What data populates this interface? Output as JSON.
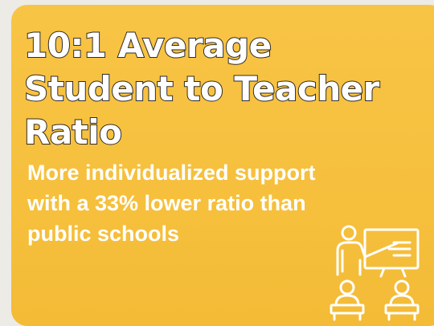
{
  "headline": {
    "line1": "10:1 Average",
    "line2": "Student to Teacher",
    "line3": "Ratio"
  },
  "subtext": {
    "line1": "More individualized support",
    "line2": "with a 33% lower ratio than",
    "line3": "public schools"
  },
  "icon": "teacher-classroom-icon",
  "colors": {
    "card_background": "#f6c03d",
    "headline_fill": "#ffffff",
    "headline_outline": "#2e2a24",
    "subtext": "#ffffff",
    "icon_stroke": "#ffffff"
  }
}
